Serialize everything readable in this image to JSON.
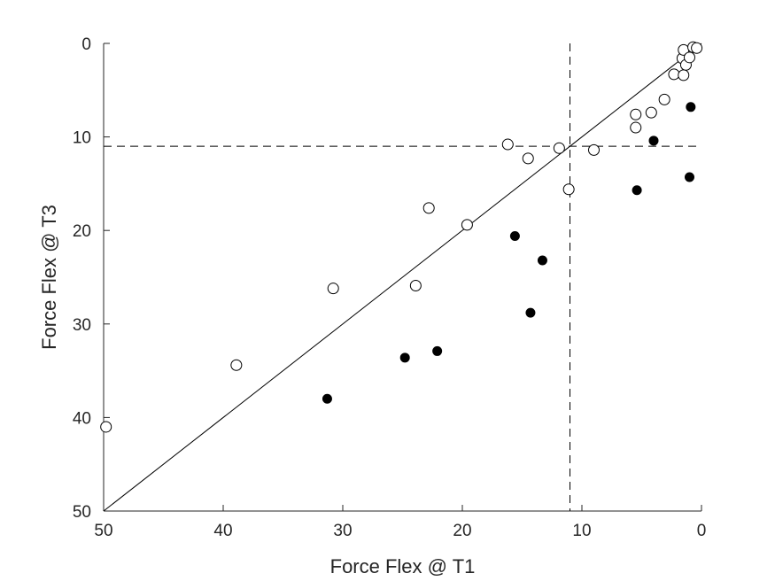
{
  "chart_data": {
    "type": "scatter",
    "xlabel": "Force Flex @ T1",
    "ylabel": "Force Flex @ T3",
    "xlim": [
      50,
      0
    ],
    "ylim": [
      50,
      0
    ],
    "x_reversed": true,
    "y_reversed": true,
    "xticks": [
      50,
      40,
      30,
      20,
      10,
      0
    ],
    "yticks": [
      0,
      10,
      20,
      30,
      40,
      50
    ],
    "grid": false,
    "reference_lines": {
      "identity": {
        "from": [
          50,
          50
        ],
        "to": [
          0,
          0
        ],
        "style": "solid"
      },
      "vertical_threshold": {
        "x": 11,
        "style": "dashed"
      },
      "horizontal_threshold": {
        "y": 11,
        "style": "dashed"
      }
    },
    "series": [
      {
        "marker": "open-circle",
        "points": [
          [
            49.8,
            41.0
          ],
          [
            38.9,
            34.4
          ],
          [
            30.8,
            26.2
          ],
          [
            23.9,
            25.9
          ],
          [
            22.8,
            17.6
          ],
          [
            19.6,
            19.4
          ],
          [
            16.2,
            10.8
          ],
          [
            14.5,
            12.3
          ],
          [
            11.9,
            11.2
          ],
          [
            11.1,
            15.6
          ],
          [
            9.0,
            11.4
          ],
          [
            5.5,
            7.6
          ],
          [
            5.5,
            9.0
          ],
          [
            4.2,
            7.4
          ],
          [
            3.1,
            6.0
          ],
          [
            2.3,
            3.3
          ],
          [
            1.5,
            3.4
          ],
          [
            1.6,
            1.6
          ],
          [
            1.3,
            2.3
          ],
          [
            1.5,
            0.7
          ],
          [
            1.0,
            1.5
          ],
          [
            0.7,
            0.4
          ],
          [
            0.4,
            0.5
          ]
        ]
      },
      {
        "marker": "filled-circle",
        "points": [
          [
            31.3,
            38.0
          ],
          [
            24.8,
            33.6
          ],
          [
            22.1,
            32.9
          ],
          [
            15.6,
            20.6
          ],
          [
            14.3,
            28.8
          ],
          [
            13.3,
            23.2
          ],
          [
            5.4,
            15.7
          ],
          [
            4.0,
            10.4
          ],
          [
            0.9,
            6.8
          ],
          [
            1.0,
            14.3
          ]
        ]
      }
    ]
  }
}
